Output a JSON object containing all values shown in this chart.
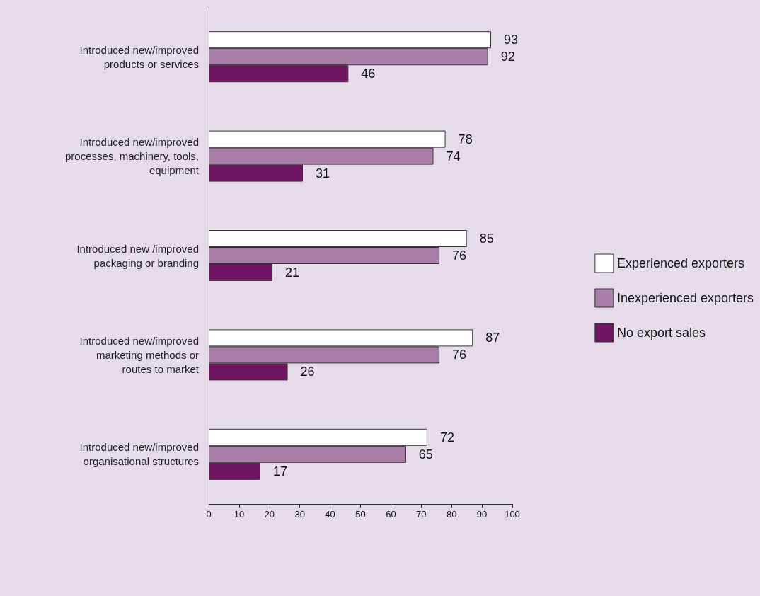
{
  "chart_data": {
    "type": "bar",
    "orientation": "horizontal",
    "categories": [
      "Introduced new/improved\nproducts or services",
      "Introduced new/improved\nprocesses, machinery, tools,\nequipment",
      "Introduced new /improved\npackaging or branding",
      "Introduced new/improved\nmarketing methods or\nroutes to market",
      "Introduced new/improved\norganisational structures"
    ],
    "series": [
      {
        "name": "Experienced exporters",
        "color": "#ffffff",
        "values": [
          93,
          78,
          85,
          87,
          72
        ]
      },
      {
        "name": "Inexperienced exporters",
        "color": "#a97fa9",
        "values": [
          92,
          74,
          76,
          76,
          65
        ]
      },
      {
        "name": "No export sales",
        "color": "#6f1460",
        "values": [
          46,
          31,
          21,
          26,
          17
        ]
      }
    ],
    "xlim": [
      0,
      100
    ],
    "xticks": [
      0,
      10,
      20,
      30,
      40,
      50,
      60,
      70,
      80,
      90,
      100
    ],
    "grid": false,
    "legend": "right",
    "data_labels": true
  }
}
